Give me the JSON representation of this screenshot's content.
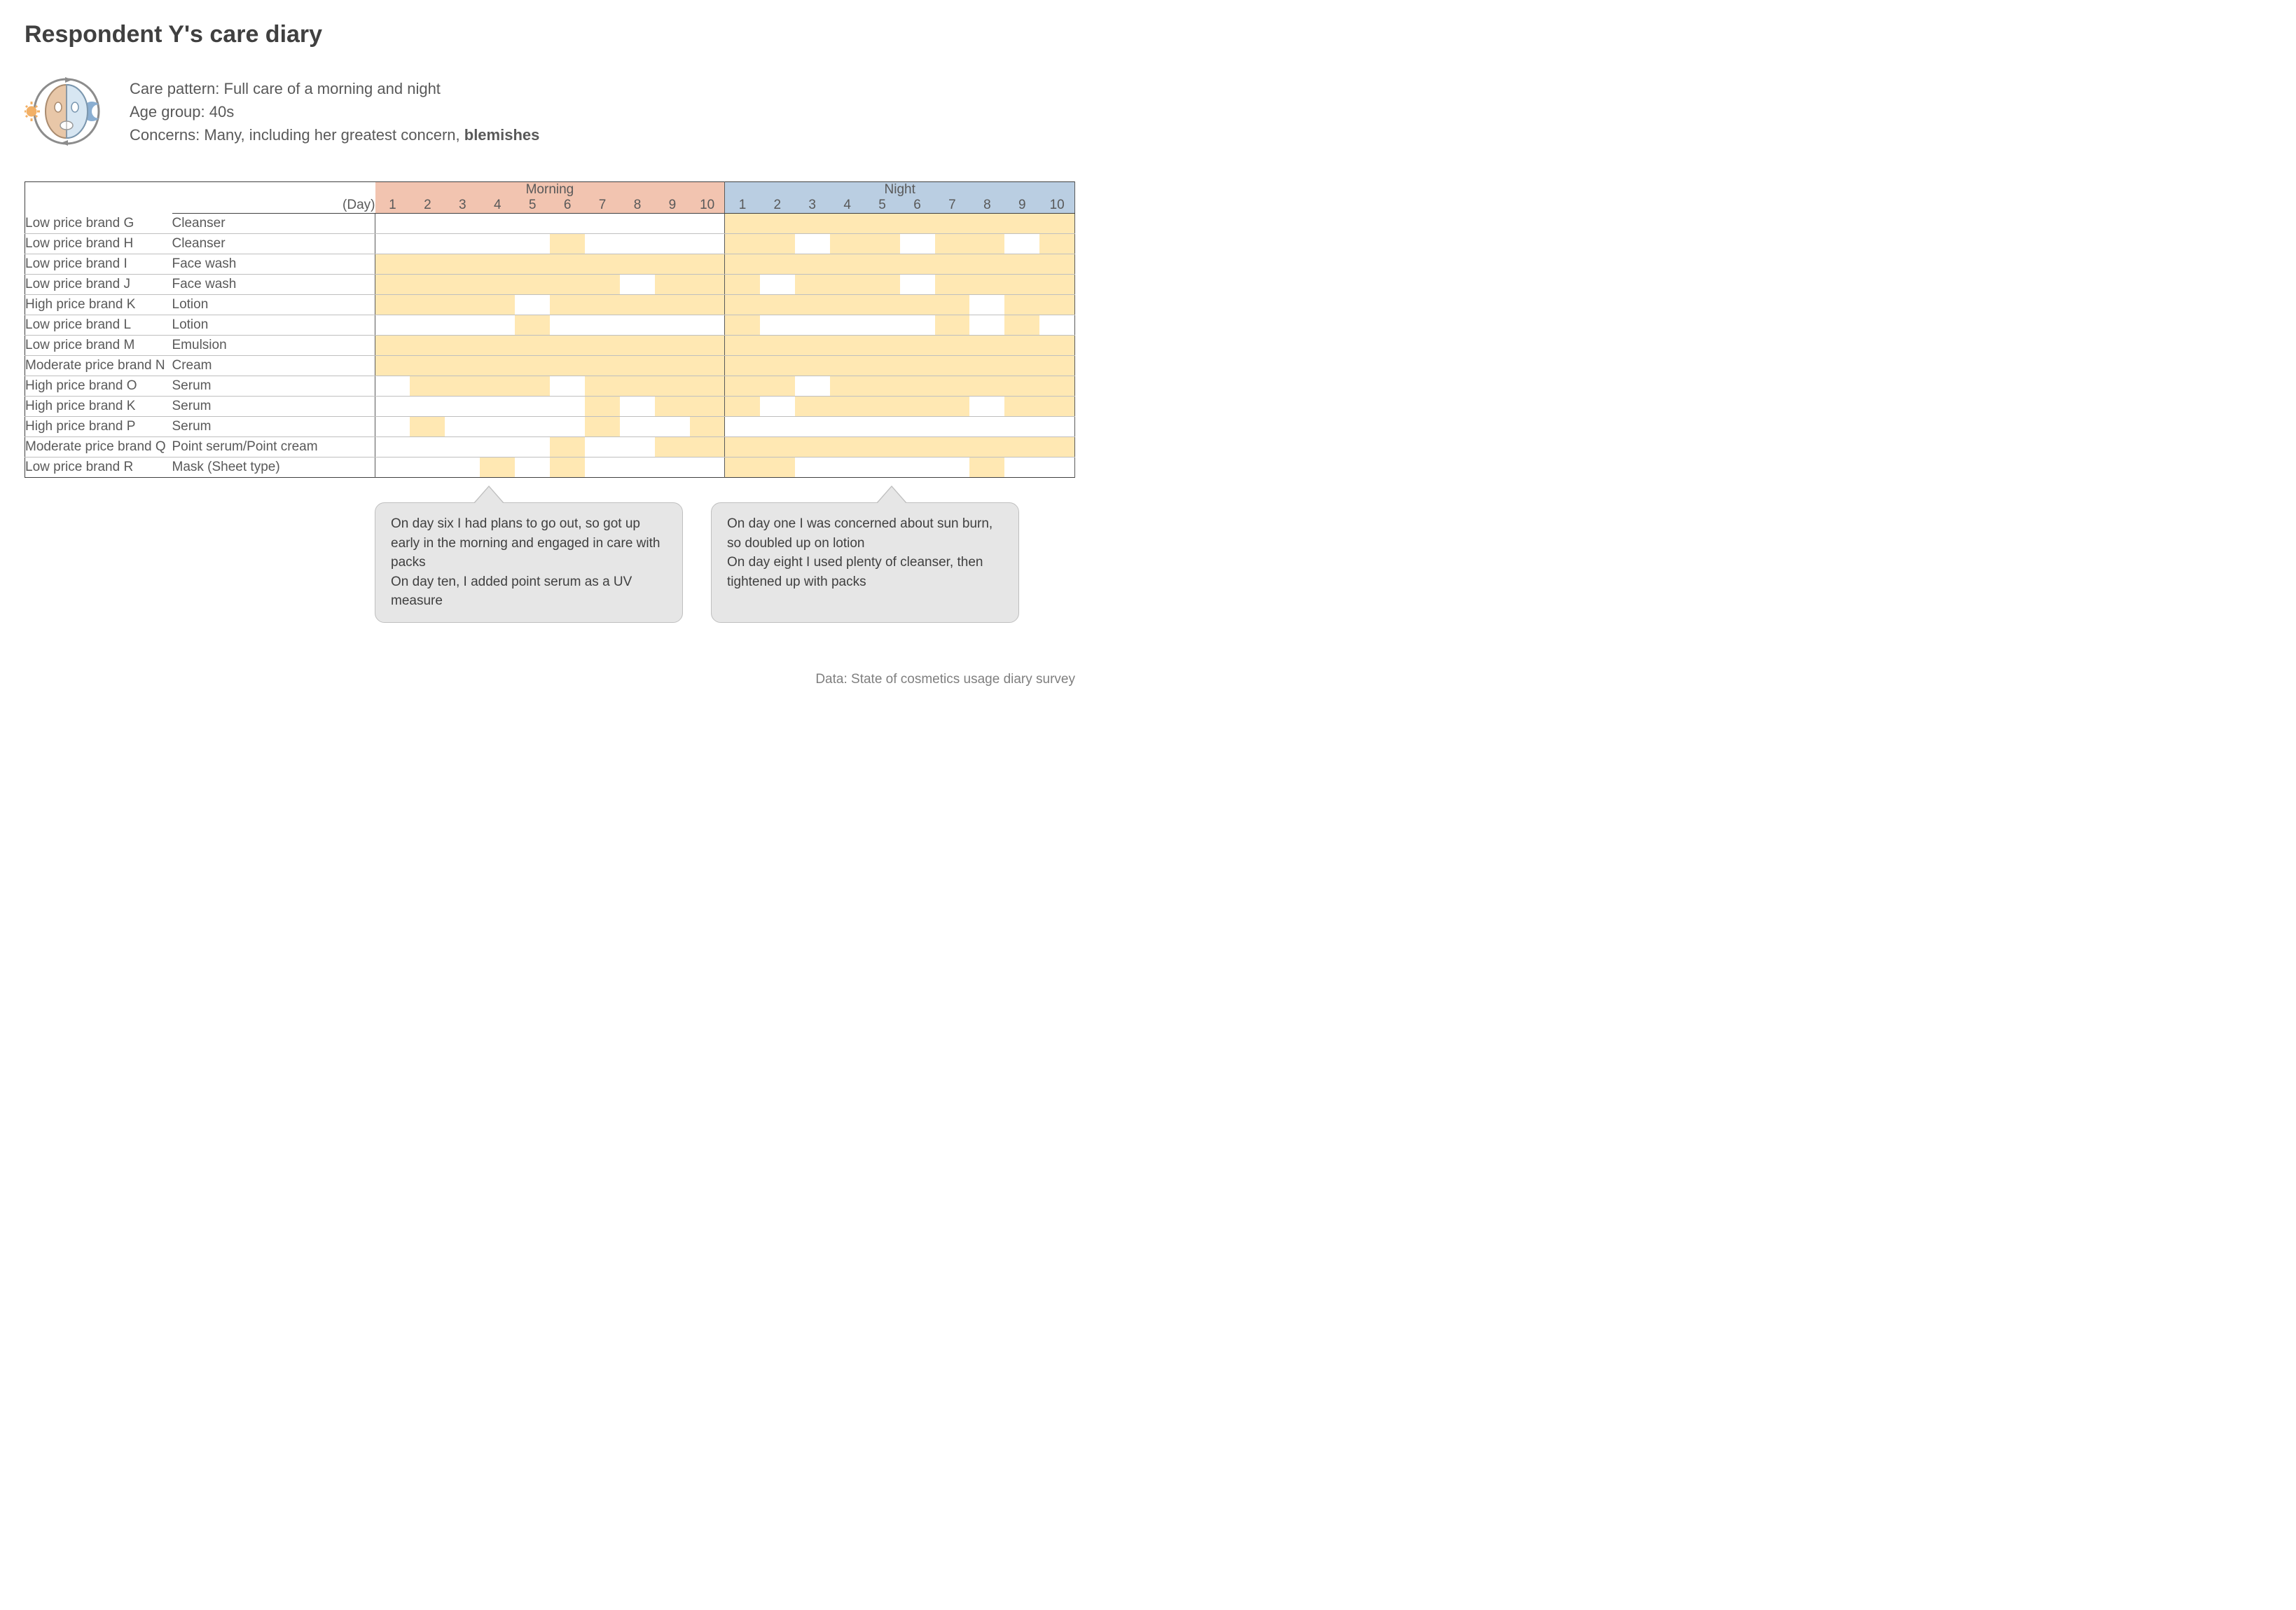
{
  "title": "Respondent Y's care diary",
  "meta": {
    "pattern_label": "Care pattern: ",
    "pattern": "Full care of a morning and night",
    "age_label": "Age group: ",
    "age": "40s",
    "concerns_label": "Concerns: ",
    "concerns_pre": "Many, including her greatest concern, ",
    "concerns_bold": "blemishes"
  },
  "day_label": "(Day)",
  "sections": [
    {
      "label": "Morning",
      "header_bg": "#f2c4b0",
      "days": [
        1,
        2,
        3,
        4,
        5,
        6,
        7,
        8,
        9,
        10
      ]
    },
    {
      "label": "Night",
      "header_bg": "#bacee2",
      "days": [
        1,
        2,
        3,
        4,
        5,
        6,
        7,
        8,
        9,
        10
      ]
    }
  ],
  "fill_color": "#ffe8b3",
  "rows": [
    {
      "brand": "Low price brand G",
      "product": "Cleanser",
      "morning": [
        0,
        0,
        0,
        0,
        0,
        0,
        0,
        0,
        0,
        0
      ],
      "night": [
        1,
        1,
        1,
        1,
        1,
        1,
        1,
        1,
        1,
        1
      ]
    },
    {
      "brand": "Low price brand H",
      "product": "Cleanser",
      "morning": [
        0,
        0,
        0,
        0,
        0,
        1,
        0,
        0,
        0,
        0
      ],
      "night": [
        1,
        1,
        0,
        1,
        1,
        0,
        1,
        1,
        0,
        1
      ]
    },
    {
      "brand": "Low price brand I",
      "product": "Face wash",
      "morning": [
        1,
        1,
        1,
        1,
        1,
        1,
        1,
        1,
        1,
        1
      ],
      "night": [
        1,
        1,
        1,
        1,
        1,
        1,
        1,
        1,
        1,
        1
      ]
    },
    {
      "brand": "Low price brand J",
      "product": "Face wash",
      "morning": [
        1,
        1,
        1,
        1,
        1,
        1,
        1,
        0,
        1,
        1
      ],
      "night": [
        1,
        0,
        1,
        1,
        1,
        0,
        1,
        1,
        1,
        1
      ]
    },
    {
      "brand": "High price brand K",
      "product": "Lotion",
      "morning": [
        1,
        1,
        1,
        1,
        0,
        1,
        1,
        1,
        1,
        1
      ],
      "night": [
        1,
        1,
        1,
        1,
        1,
        1,
        1,
        0,
        1,
        1
      ]
    },
    {
      "brand": "Low price brand L",
      "product": "Lotion",
      "morning": [
        0,
        0,
        0,
        0,
        1,
        0,
        0,
        0,
        0,
        0
      ],
      "night": [
        1,
        0,
        0,
        0,
        0,
        0,
        1,
        0,
        1,
        0
      ]
    },
    {
      "brand": "Low price brand M",
      "product": "Emulsion",
      "morning": [
        1,
        1,
        1,
        1,
        1,
        1,
        1,
        1,
        1,
        1
      ],
      "night": [
        1,
        1,
        1,
        1,
        1,
        1,
        1,
        1,
        1,
        1
      ]
    },
    {
      "brand": "Moderate price brand N",
      "product": "Cream",
      "morning": [
        1,
        1,
        1,
        1,
        1,
        1,
        1,
        1,
        1,
        1
      ],
      "night": [
        1,
        1,
        1,
        1,
        1,
        1,
        1,
        1,
        1,
        1
      ]
    },
    {
      "brand": "High price brand O",
      "product": "Serum",
      "morning": [
        0,
        1,
        1,
        1,
        1,
        0,
        1,
        1,
        1,
        1
      ],
      "night": [
        1,
        1,
        0,
        1,
        1,
        1,
        1,
        1,
        1,
        1
      ]
    },
    {
      "brand": "High price brand K",
      "product": "Serum",
      "morning": [
        0,
        0,
        0,
        0,
        0,
        0,
        1,
        0,
        1,
        1
      ],
      "night": [
        1,
        0,
        1,
        1,
        1,
        1,
        1,
        0,
        1,
        1
      ]
    },
    {
      "brand": "High price brand P",
      "product": "Serum",
      "morning": [
        0,
        1,
        0,
        0,
        0,
        0,
        1,
        0,
        0,
        1
      ],
      "night": [
        0,
        0,
        0,
        0,
        0,
        0,
        0,
        0,
        0,
        0
      ]
    },
    {
      "brand": "Moderate price brand Q",
      "product": "Point serum/Point cream",
      "morning": [
        0,
        0,
        0,
        0,
        0,
        1,
        0,
        0,
        1,
        1
      ],
      "night": [
        1,
        1,
        1,
        1,
        1,
        1,
        1,
        1,
        1,
        1
      ]
    },
    {
      "brand": "Low price brand R",
      "product": "Mask (Sheet type)",
      "morning": [
        0,
        0,
        0,
        1,
        0,
        1,
        0,
        0,
        0,
        0
      ],
      "night": [
        1,
        1,
        0,
        0,
        0,
        0,
        0,
        1,
        0,
        0
      ]
    }
  ],
  "callouts": [
    "On day six I had plans to go out, so got up early in the morning and engaged in care with packs\nOn day ten, I added point serum as a UV measure",
    "On day one I was concerned about sun burn, so doubled up on lotion\nOn day eight I used plenty of cleanser, then tightened up with packs"
  ],
  "source": "Data: State of cosmetics usage diary survey",
  "icon": {
    "ring": "#8c8c8c",
    "sun": "#f2b066",
    "moon": "#8aaed1",
    "face_left": "#e8c7a8",
    "face_right": "#d7e6f2"
  }
}
